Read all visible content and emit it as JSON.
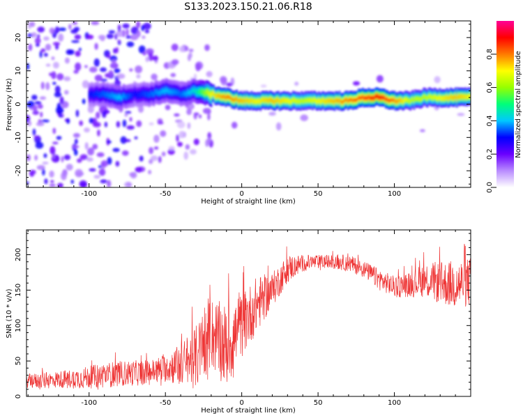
{
  "title": "S133.2023.150.21.06.R18",
  "chart_data": [
    {
      "type": "heatmap",
      "xlabel": "Height of straight line (km)",
      "ylabel": "Frequency (Hz)",
      "xlim": [
        -141,
        150
      ],
      "ylim": [
        -25,
        25
      ],
      "xticks": [
        -100,
        -50,
        0,
        50,
        100
      ],
      "yticks": [
        -20,
        -10,
        0,
        10,
        20
      ],
      "colorbar": {
        "label": "Normalized spectral amplitude",
        "range": [
          0.0,
          1.0
        ],
        "ticks": [
          0.0,
          0.2,
          0.4,
          0.6,
          0.8
        ],
        "colors": [
          "#ffffff",
          "#b98cff",
          "#6a00ff",
          "#0000ff",
          "#00c8ff",
          "#00ff7a",
          "#96ff00",
          "#ffff00",
          "#ff7a00",
          "#ff0000",
          "#ff0096"
        ]
      },
      "ridge": {
        "x": [
          -100,
          -90,
          -80,
          -70,
          -60,
          -50,
          -40,
          -30,
          -20,
          -10,
          0,
          10,
          20,
          30,
          40,
          50,
          60,
          70,
          80,
          90,
          100,
          110,
          120,
          130,
          140,
          150
        ],
        "frequency": [
          3,
          3,
          2,
          3,
          3,
          4,
          3,
          4,
          3,
          2,
          1,
          1,
          1,
          1,
          1,
          1,
          1,
          1,
          2,
          2,
          1,
          1,
          2,
          2,
          2,
          2
        ],
        "amplitude": [
          0.3,
          0.35,
          0.4,
          0.3,
          0.35,
          0.4,
          0.35,
          0.45,
          0.7,
          0.8,
          0.75,
          0.7,
          0.75,
          0.7,
          0.65,
          0.7,
          0.75,
          0.8,
          0.85,
          0.9,
          0.8,
          0.65,
          0.65,
          0.7,
          0.75,
          0.7
        ]
      }
    },
    {
      "type": "line",
      "xlabel": "Height of straight line (km)",
      "ylabel": "SNR (10 * v/v)",
      "xlim": [
        -141,
        150
      ],
      "ylim": [
        0,
        235
      ],
      "xticks": [
        -100,
        -50,
        0,
        50,
        100
      ],
      "yticks": [
        0,
        50,
        100,
        150,
        200
      ],
      "series": [
        {
          "color": "#ee3333",
          "x": [
            -140,
            -130,
            -120,
            -110,
            -100,
            -90,
            -80,
            -70,
            -60,
            -50,
            -40,
            -30,
            -20,
            -10,
            0,
            10,
            20,
            30,
            40,
            50,
            60,
            70,
            80,
            90,
            100,
            110,
            120,
            130,
            140,
            150
          ],
          "mean": [
            22,
            22,
            24,
            25,
            27,
            30,
            32,
            33,
            34,
            40,
            45,
            55,
            90,
            70,
            100,
            130,
            150,
            180,
            188,
            190,
            190,
            188,
            180,
            165,
            155,
            158,
            165,
            160,
            158,
            162
          ],
          "spread": [
            10,
            12,
            12,
            14,
            16,
            18,
            18,
            18,
            18,
            20,
            30,
            45,
            50,
            60,
            45,
            40,
            25,
            20,
            12,
            10,
            10,
            12,
            12,
            15,
            15,
            18,
            25,
            30,
            35,
            35
          ]
        }
      ]
    }
  ]
}
